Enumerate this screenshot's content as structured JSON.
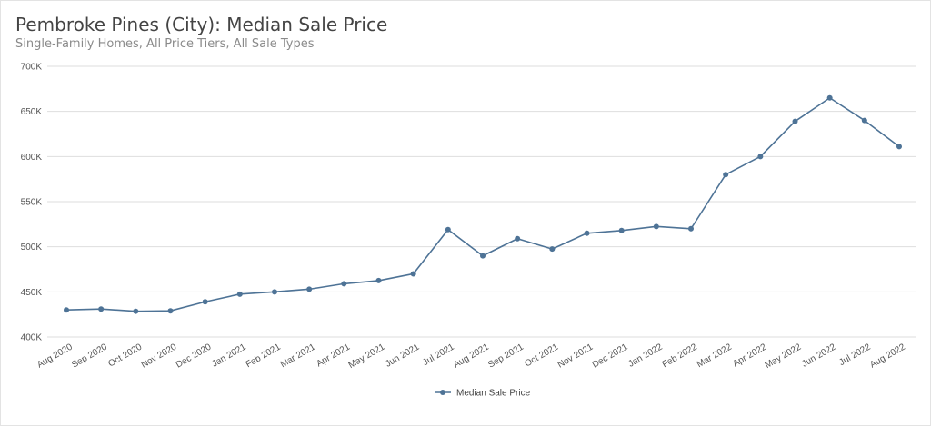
{
  "title": "Pembroke Pines (City): Median Sale Price",
  "subtitle": "Single-Family Homes, All Price Tiers, All Sale Types",
  "colors": {
    "series": "#4e7396",
    "grid": "#dedede",
    "axis_text": "#555555"
  },
  "chart_data": {
    "type": "line",
    "x": [
      "Aug 2020",
      "Sep 2020",
      "Oct 2020",
      "Nov 2020",
      "Dec 2020",
      "Jan 2021",
      "Feb 2021",
      "Mar 2021",
      "Apr 2021",
      "May 2021",
      "Jun 2021",
      "Jul 2021",
      "Aug 2021",
      "Sep 2021",
      "Oct 2021",
      "Nov 2021",
      "Dec 2021",
      "Jan 2022",
      "Feb 2022",
      "Mar 2022",
      "Apr 2022",
      "May 2022",
      "Jun 2022",
      "Jul 2022",
      "Aug 2022"
    ],
    "series": [
      {
        "name": "Median Sale Price",
        "values": [
          430000,
          431000,
          428500,
          429000,
          439000,
          447500,
          450000,
          453000,
          459000,
          462500,
          470000,
          519000,
          490000,
          509000,
          497500,
          515000,
          518000,
          522500,
          520000,
          580000,
          600000,
          639000,
          665000,
          640000,
          611000
        ]
      }
    ],
    "ylim": [
      400000,
      700000
    ],
    "yticks": [
      400000,
      450000,
      500000,
      550000,
      600000,
      650000,
      700000
    ],
    "ytick_labels": [
      "400K",
      "450K",
      "500K",
      "550K",
      "600K",
      "650K",
      "700K"
    ],
    "grid": true,
    "legend_position": "bottom-center",
    "xlabel": "",
    "ylabel": ""
  }
}
